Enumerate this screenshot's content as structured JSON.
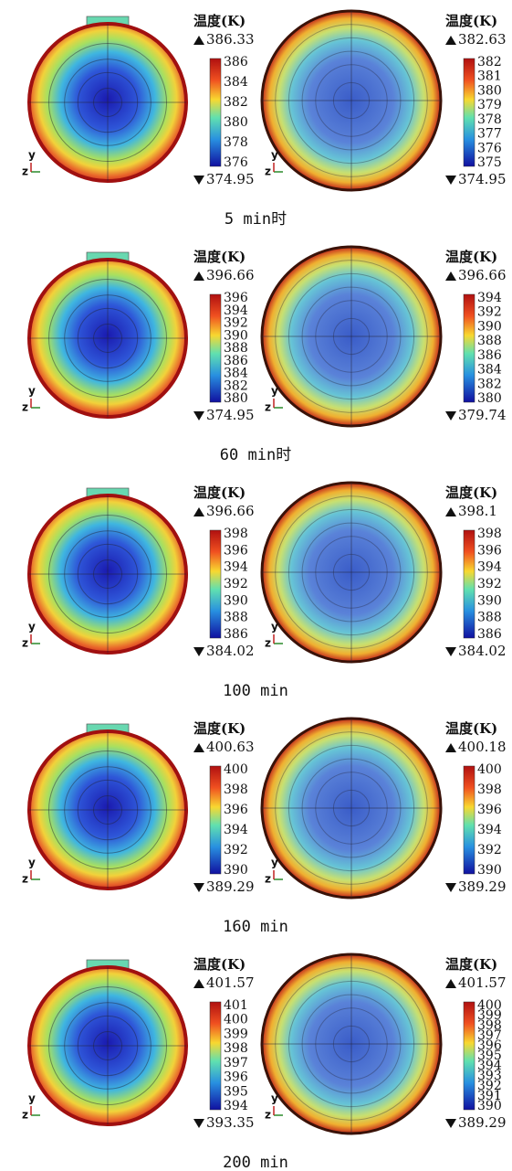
{
  "colorbar_title": "温度(K)",
  "axis_labels": {
    "horizontal": "z",
    "vertical": "y"
  },
  "rows": [
    {
      "caption": "5 min时",
      "panels": [
        {
          "max": 386.33,
          "min": 374.95,
          "ticks": [
            386,
            384,
            382,
            380,
            378,
            376
          ]
        },
        {
          "max": 382.63,
          "min": 374.95,
          "ticks": [
            382,
            381,
            380,
            379,
            378,
            377,
            376,
            375
          ]
        }
      ]
    },
    {
      "caption": "60 min时",
      "panels": [
        {
          "max": 396.66,
          "min": 374.95,
          "ticks": [
            396,
            394,
            392,
            390,
            388,
            386,
            384,
            382,
            380
          ]
        },
        {
          "max": 396.66,
          "min": 379.74,
          "ticks": [
            394,
            392,
            390,
            388,
            386,
            384,
            382,
            380
          ]
        }
      ]
    },
    {
      "caption": "100 min",
      "panels": [
        {
          "max": 396.66,
          "min": 384.02,
          "ticks": [
            398,
            396,
            394,
            392,
            390,
            388,
            386
          ]
        },
        {
          "max": 398.1,
          "min": 384.02,
          "ticks": [
            398,
            396,
            394,
            392,
            390,
            388,
            386
          ]
        }
      ]
    },
    {
      "caption": "160 min",
      "panels": [
        {
          "max": 400.63,
          "min": 389.29,
          "ticks": [
            400,
            398,
            396,
            394,
            392,
            390
          ]
        },
        {
          "max": 400.18,
          "min": 389.29,
          "ticks": [
            400,
            398,
            396,
            394,
            392,
            390
          ]
        }
      ]
    },
    {
      "caption": "200 min",
      "panels": [
        {
          "max": 401.57,
          "min": 393.35,
          "ticks": [
            401,
            400,
            399,
            398,
            397,
            396,
            395,
            394
          ]
        },
        {
          "max": 401.57,
          "min": 389.29,
          "ticks": [
            400,
            399,
            398,
            397,
            396,
            395,
            394,
            393,
            392,
            391,
            390
          ]
        }
      ]
    }
  ]
}
